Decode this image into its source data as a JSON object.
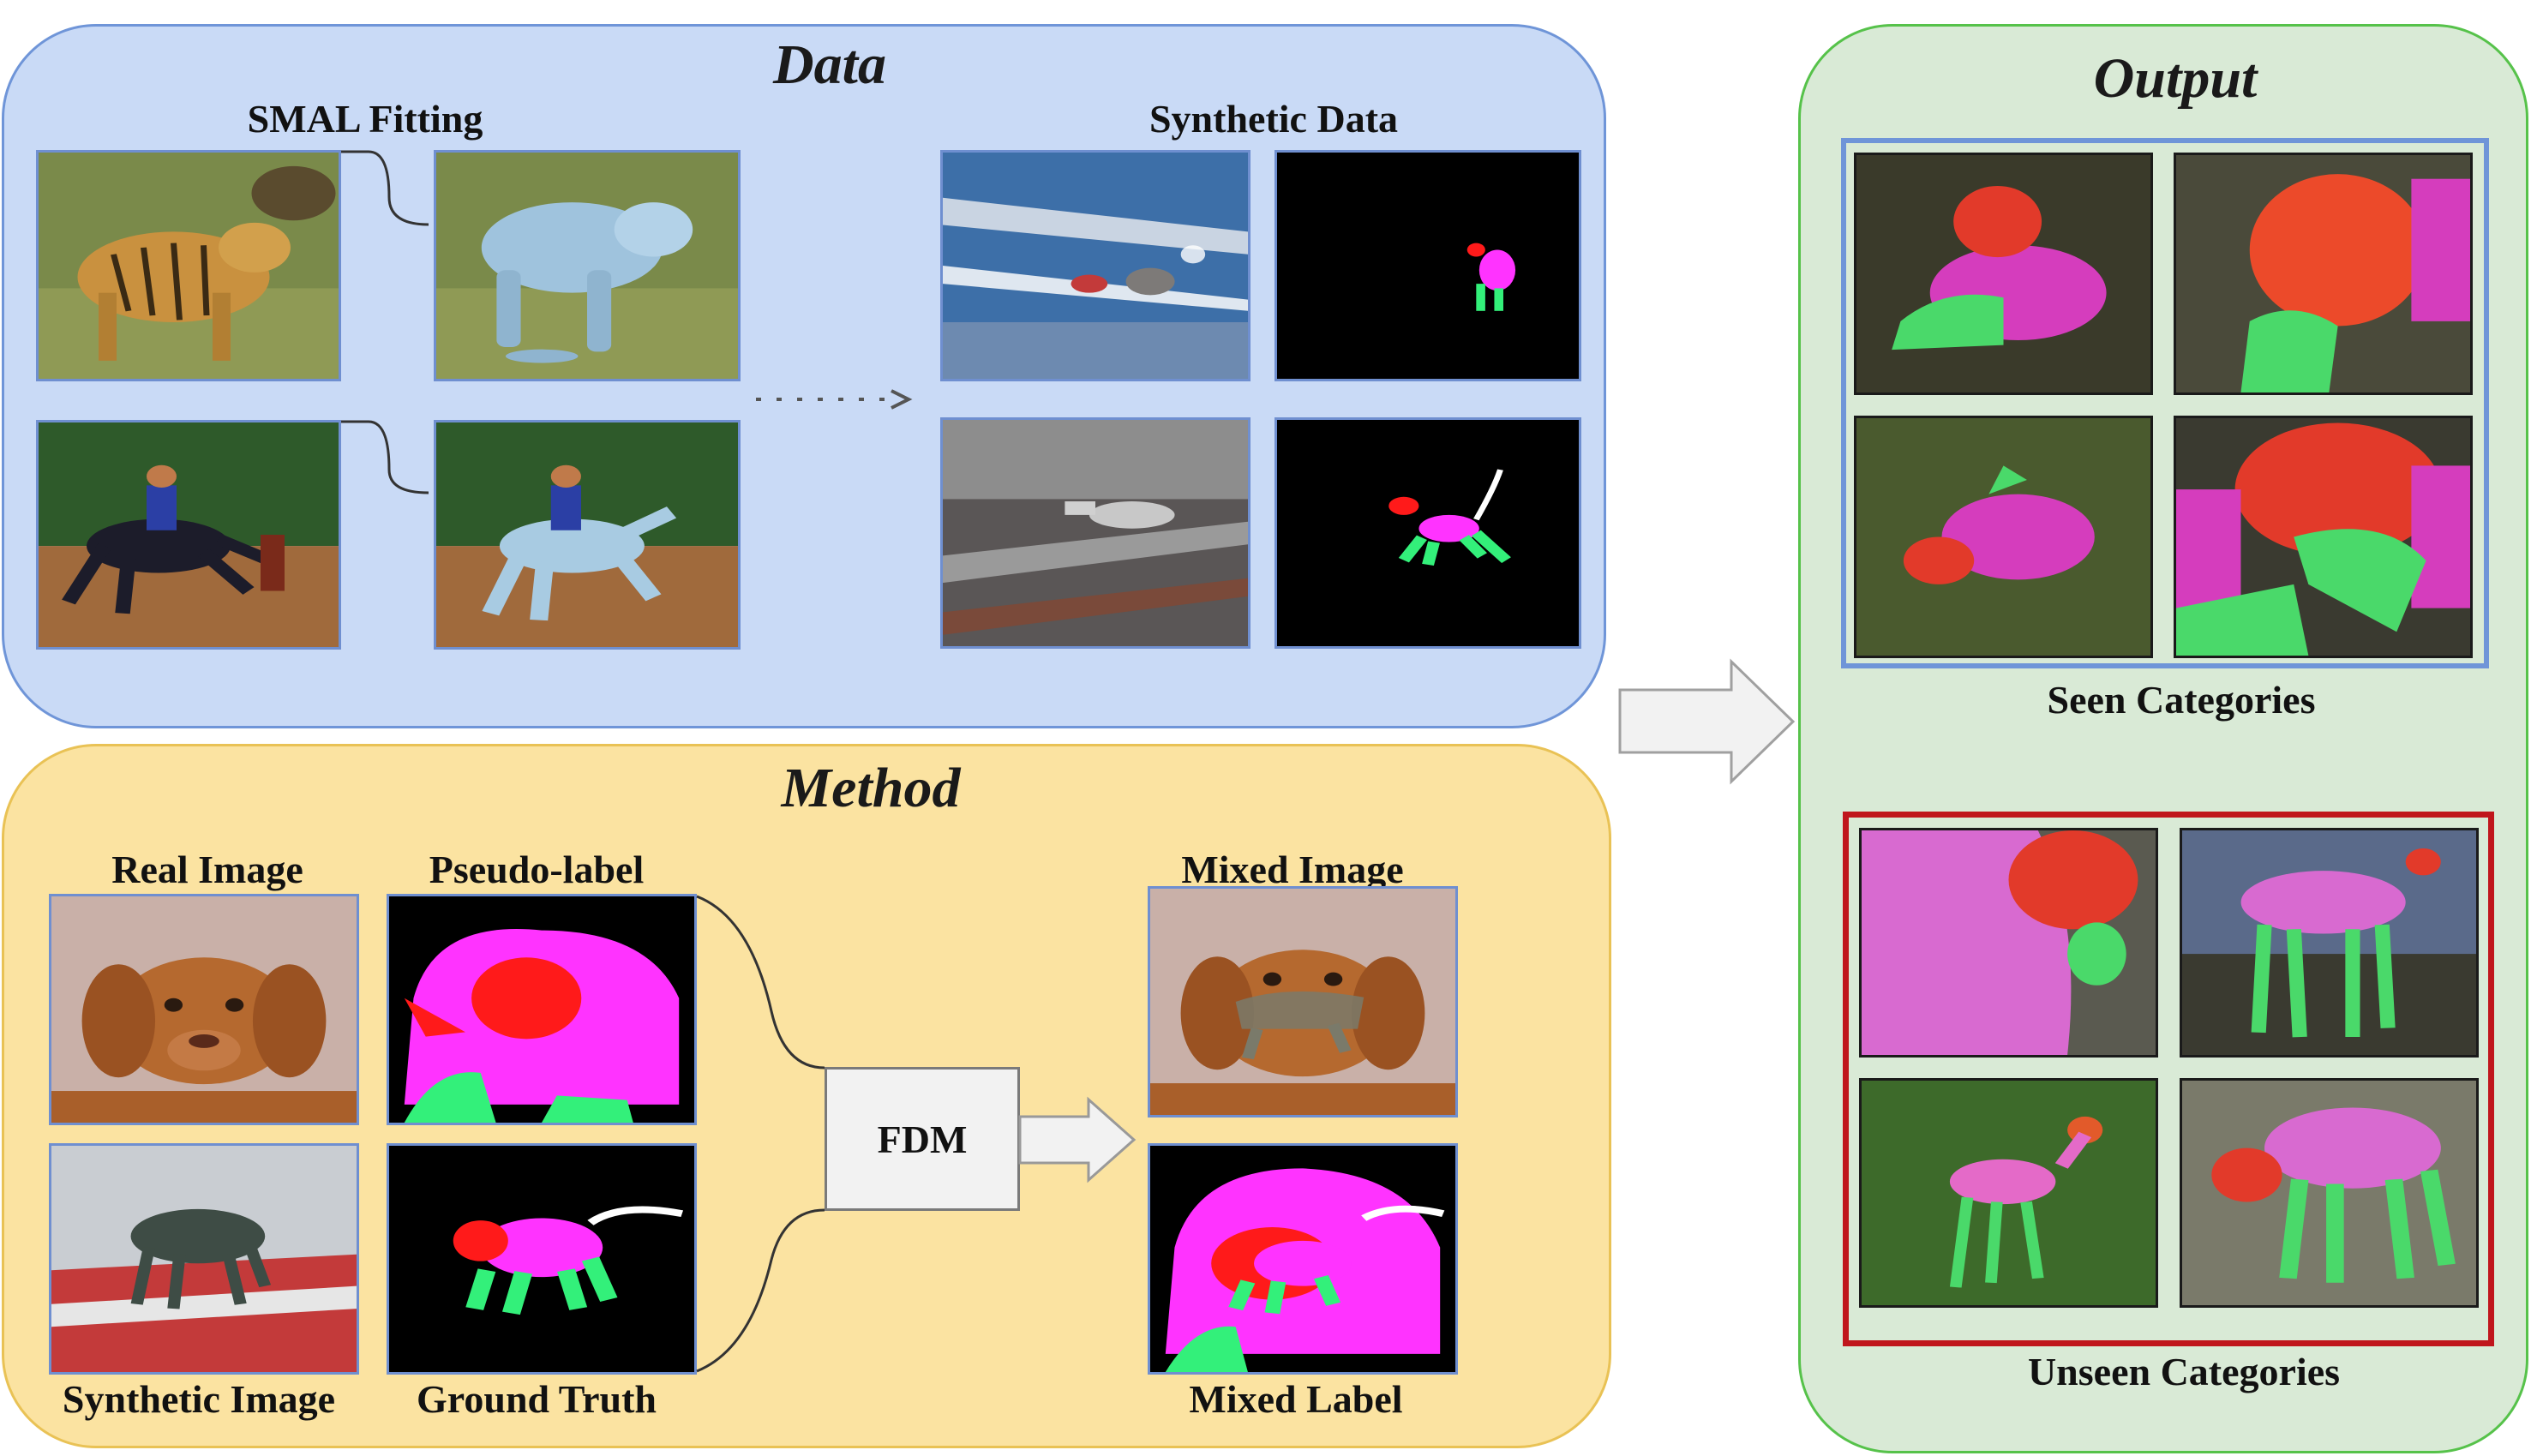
{
  "data_panel": {
    "title": "Data",
    "smal_label": "SMAL Fitting",
    "synthetic_label": "Synthetic Data"
  },
  "method_panel": {
    "title": "Method",
    "real_image": "Real Image",
    "pseudo_label": "Pseudo-label",
    "synthetic_image": "Synthetic Image",
    "ground_truth": "Ground Truth",
    "fdm": "FDM",
    "mixed_image": "Mixed Image",
    "mixed_label": "Mixed Label"
  },
  "output_panel": {
    "title": "Output",
    "seen": "Seen Categories",
    "unseen": "Unseen Categories"
  },
  "colors": {
    "data_bg": "#c9daf6",
    "method_bg": "#fbe3a1",
    "output_bg": "#d9ead6",
    "seen_border": "#6f95d8",
    "unseen_border": "#c0161c",
    "part_head": "#ff1a1a",
    "part_torso": "#ff33ff",
    "part_legs": "#33f07a"
  }
}
